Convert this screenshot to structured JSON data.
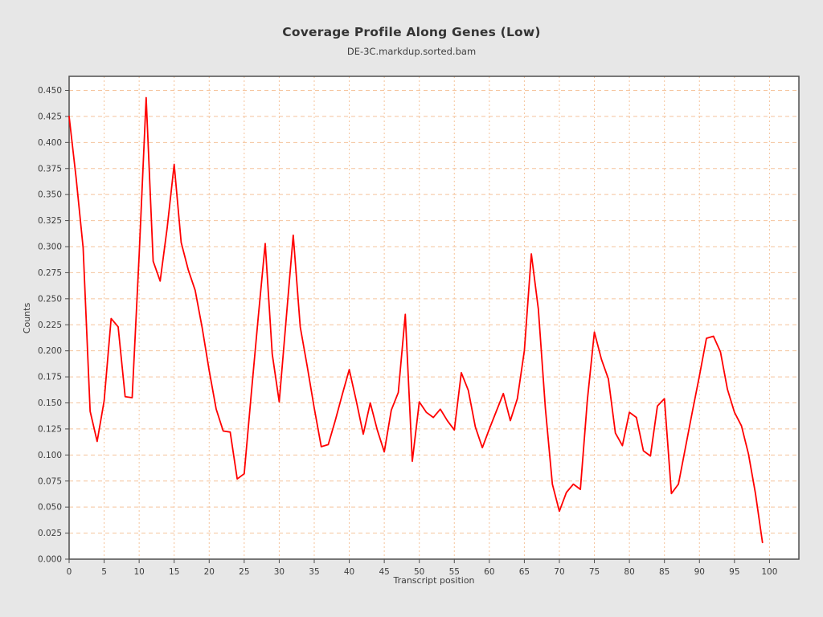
{
  "header": {
    "title": "Coverage Profile Along Genes (Low)",
    "subtitle": "DE-3C.markdup.sorted.bam"
  },
  "chart_data": {
    "type": "line",
    "title": "Coverage Profile Along Genes (Low)",
    "subtitle": "DE-3C.markdup.sorted.bam",
    "xlabel": "Transcript position",
    "ylabel": "Counts",
    "xlim": [
      0,
      104.2
    ],
    "ylim": [
      0,
      0.4635
    ],
    "x_ticks": [
      0,
      5,
      10,
      15,
      20,
      25,
      30,
      35,
      40,
      45,
      50,
      55,
      60,
      65,
      70,
      75,
      80,
      85,
      90,
      95,
      100
    ],
    "y_ticks": [
      0.0,
      0.025,
      0.05,
      0.075,
      0.1,
      0.125,
      0.15,
      0.175,
      0.2,
      0.225,
      0.25,
      0.275,
      0.3,
      0.325,
      0.35,
      0.375,
      0.4,
      0.425,
      0.45
    ],
    "grid": true,
    "legend_position": "none",
    "series": [
      {
        "name": "DE-3C.markdup.sorted.bam",
        "color": "#ff0000",
        "x_start": 0,
        "x_step": 1,
        "values": [
          0.425,
          0.366,
          0.299,
          0.142,
          0.113,
          0.152,
          0.231,
          0.223,
          0.156,
          0.155,
          0.292,
          0.443,
          0.286,
          0.267,
          0.318,
          0.379,
          0.304,
          0.278,
          0.258,
          0.222,
          0.181,
          0.144,
          0.123,
          0.122,
          0.077,
          0.082,
          0.158,
          0.232,
          0.303,
          0.197,
          0.151,
          0.231,
          0.311,
          0.223,
          0.185,
          0.145,
          0.108,
          0.11,
          0.133,
          0.158,
          0.182,
          0.152,
          0.12,
          0.15,
          0.124,
          0.103,
          0.143,
          0.16,
          0.235,
          0.094,
          0.151,
          0.141,
          0.136,
          0.144,
          0.133,
          0.124,
          0.179,
          0.162,
          0.127,
          0.107,
          0.125,
          0.142,
          0.159,
          0.133,
          0.154,
          0.2,
          0.293,
          0.24,
          0.145,
          0.072,
          0.046,
          0.064,
          0.072,
          0.067,
          0.153,
          0.218,
          0.192,
          0.173,
          0.121,
          0.109,
          0.141,
          0.136,
          0.104,
          0.099,
          0.147,
          0.154,
          0.063,
          0.072,
          0.107,
          0.142,
          0.176,
          0.212,
          0.214,
          0.199,
          0.163,
          0.141,
          0.128,
          0.101,
          0.063,
          0.016
        ]
      }
    ]
  },
  "style": {
    "background": "#e7e7e7",
    "plot_background": "#ffffff",
    "grid_color": "#f5c49c",
    "border_color": "#4f4f4f",
    "tick_color": "#4f4f4f",
    "text_color": "#3d3d3d",
    "line_color": "#ff0000"
  }
}
